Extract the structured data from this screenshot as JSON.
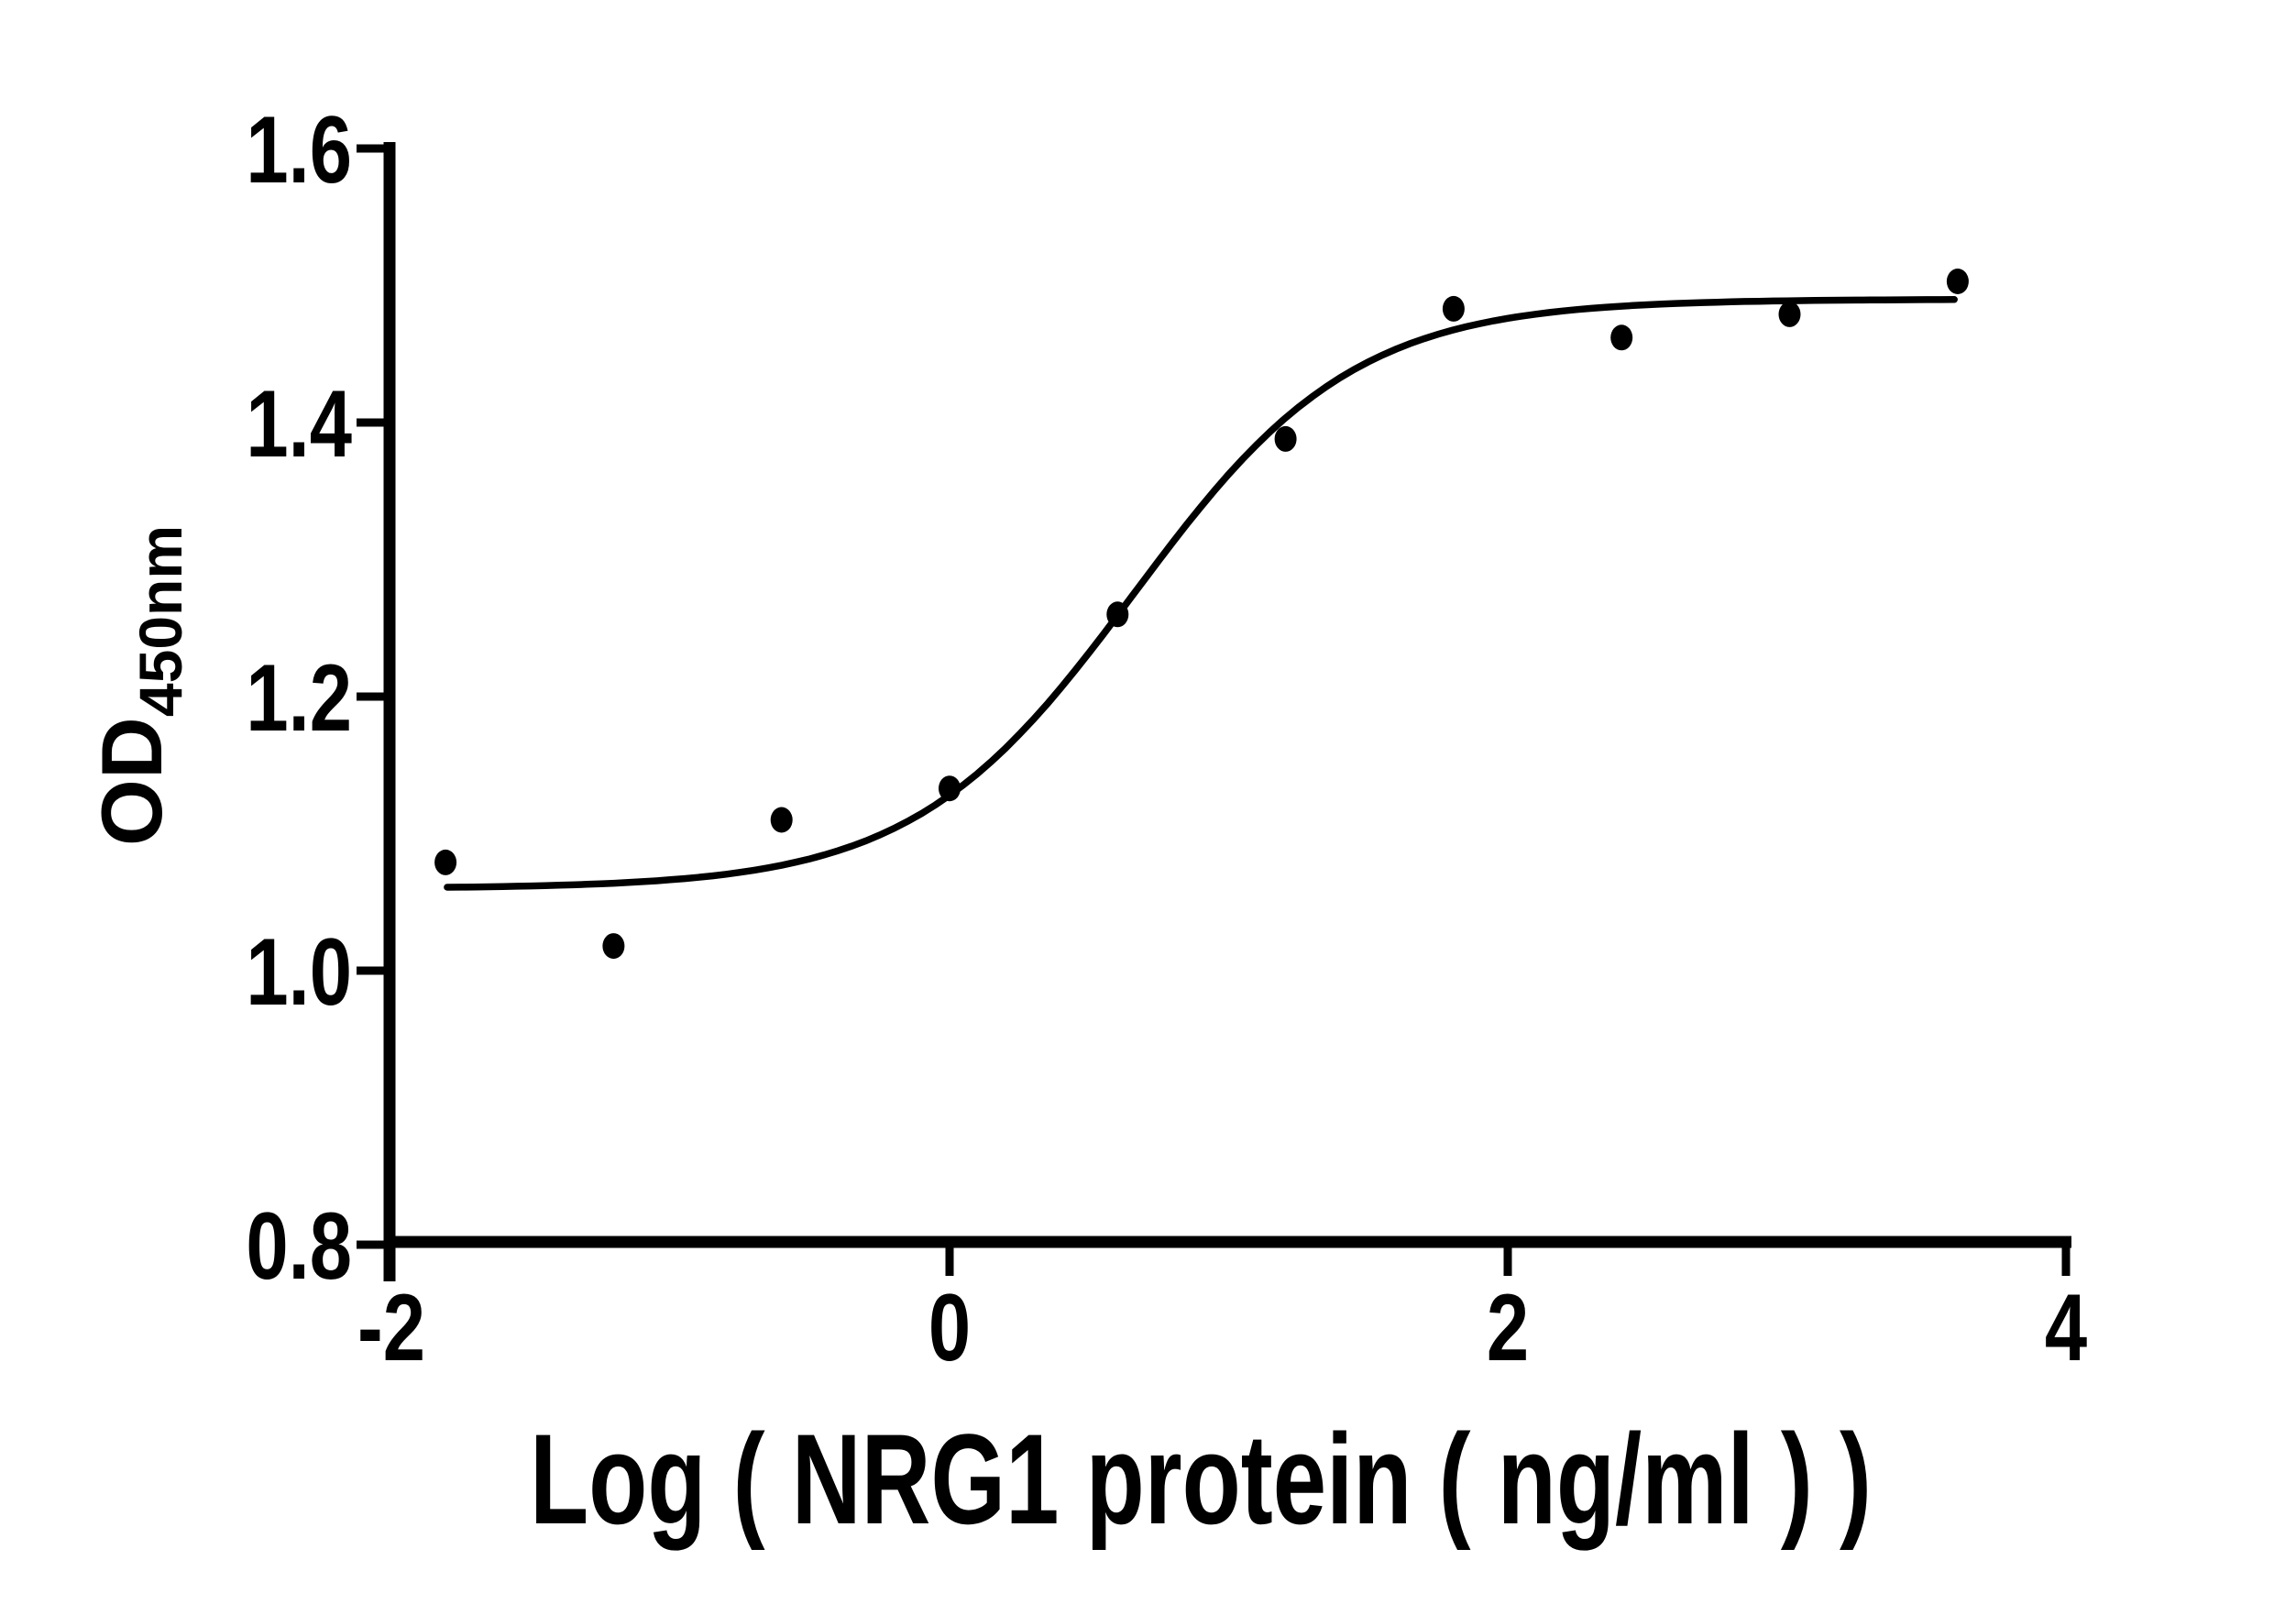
{
  "chart_data": {
    "type": "scatter",
    "title": "",
    "xlabel": "Log ( NRG1 protein ( ng/ml )   )",
    "ylabel": "OD",
    "ylabel_subscript": "450nm",
    "x_ticks": [
      "-2",
      "0",
      "2",
      "4"
    ],
    "y_ticks": [
      "0.8",
      "1.0",
      "1.2",
      "1.4",
      "1.6"
    ],
    "xlim": [
      -2,
      4
    ],
    "ylim": [
      0.8,
      1.6
    ],
    "grid": false,
    "legend": "none",
    "marker": "filled-circle",
    "marker_color": "#000000",
    "line_color": "#000000",
    "background_color": "#ffffff",
    "points": [
      {
        "x": -1.806,
        "y": 1.079
      },
      {
        "x": -1.204,
        "y": 1.018
      },
      {
        "x": -0.602,
        "y": 1.11
      },
      {
        "x": 0.0,
        "y": 1.133
      },
      {
        "x": 0.602,
        "y": 1.26
      },
      {
        "x": 1.204,
        "y": 1.388
      },
      {
        "x": 1.806,
        "y": 1.483
      },
      {
        "x": 2.408,
        "y": 1.462
      },
      {
        "x": 3.01,
        "y": 1.479
      },
      {
        "x": 3.612,
        "y": 1.503
      }
    ],
    "fit_curve": {
      "model": "four_parameter_logistic",
      "bottom": 1.06,
      "top": 1.49,
      "logEC50": 0.66,
      "hill_slope": 1.1,
      "x_start": -1.8,
      "x_end": 3.6
    }
  }
}
